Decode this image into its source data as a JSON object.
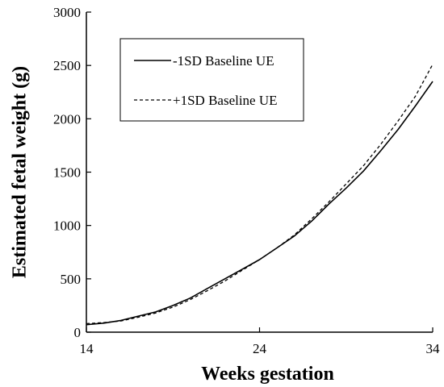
{
  "chart_data": {
    "type": "line",
    "title": "",
    "xlabel": "Weeks gestation",
    "ylabel": "Estimated fetal weight (g)",
    "xlim": [
      14,
      34
    ],
    "ylim": [
      0,
      3000
    ],
    "xticks": [
      "14",
      "24",
      "34"
    ],
    "yticks": [
      "0",
      "500",
      "1000",
      "1500",
      "2000",
      "2500",
      "3000"
    ],
    "grid": false,
    "legend_position": "top-left",
    "series": [
      {
        "name": "-1SD Baseline UE",
        "style": "solid",
        "color": "#000000",
        "x": [
          14,
          15,
          16,
          17,
          18,
          19,
          20,
          21,
          22,
          23,
          24,
          25,
          26,
          27,
          28,
          29,
          30,
          31,
          32,
          33,
          34
        ],
        "y": [
          70,
          85,
          110,
          150,
          190,
          250,
          320,
          410,
          500,
          590,
          680,
          790,
          900,
          1040,
          1200,
          1350,
          1510,
          1700,
          1900,
          2120,
          2350
        ]
      },
      {
        "name": "+1SD Baseline UE",
        "style": "dashed",
        "color": "#000000",
        "x": [
          14,
          15,
          16,
          17,
          18,
          19,
          20,
          21,
          22,
          23,
          24,
          25,
          26,
          27,
          28,
          29,
          30,
          31,
          32,
          33,
          34
        ],
        "y": [
          80,
          90,
          105,
          140,
          180,
          235,
          305,
          390,
          480,
          580,
          680,
          790,
          910,
          1060,
          1220,
          1390,
          1560,
          1760,
          1980,
          2210,
          2510
        ]
      }
    ]
  }
}
